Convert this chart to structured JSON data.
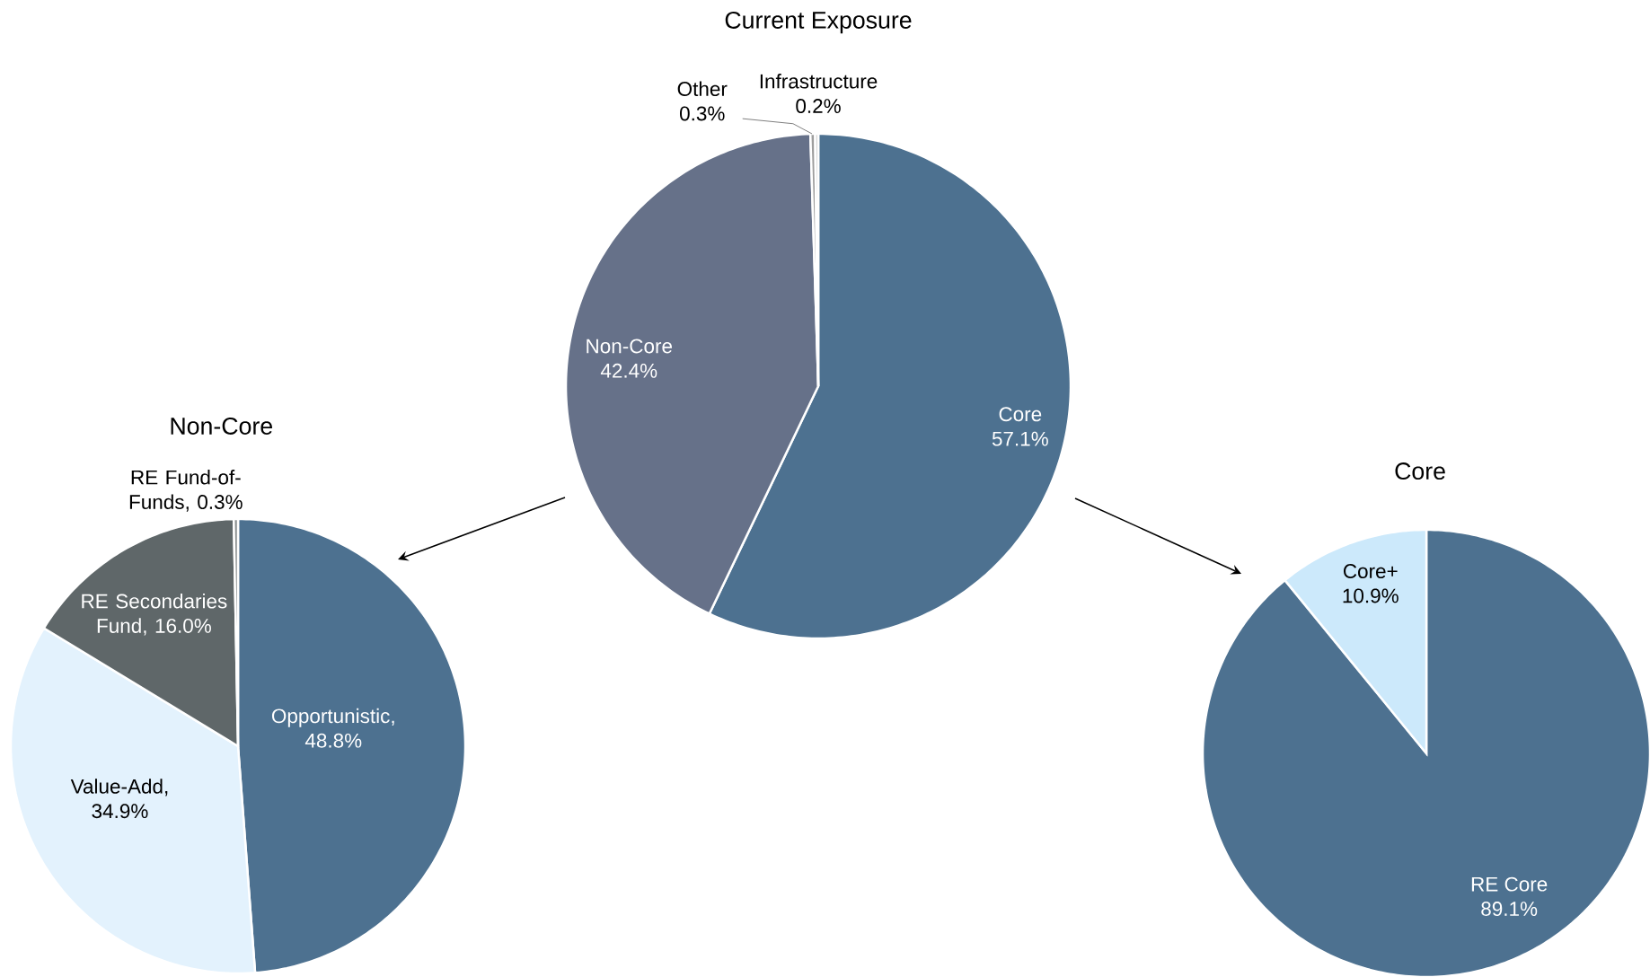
{
  "chart_data": [
    {
      "type": "pie",
      "title": "Current Exposure",
      "categories": [
        "Core",
        "Non-Core",
        "Other",
        "Infrastructure"
      ],
      "values": [
        57.1,
        42.4,
        0.3,
        0.2
      ],
      "value_labels": [
        "57.1%",
        "42.4%",
        "0.3%",
        "0.2%"
      ],
      "colors": [
        "#4d7190",
        "#667189",
        "#9e9e9e",
        "#c9c9c9"
      ]
    },
    {
      "type": "pie",
      "title": "Non-Core",
      "categories": [
        "Opportunistic",
        "Value-Add",
        "RE Secondaries Fund",
        "RE Fund-of-Funds"
      ],
      "values": [
        48.8,
        34.9,
        16.0,
        0.3
      ],
      "value_labels": [
        ", 48.8%",
        ", 34.9%",
        ", 16.0%",
        ", 0.3%"
      ],
      "colors": [
        "#4d7190",
        "#e3f2fd",
        "#5f6769",
        "#8a8f90"
      ]
    },
    {
      "type": "pie",
      "title": "Core",
      "categories": [
        "RE Core",
        "Core+"
      ],
      "values": [
        89.1,
        10.9
      ],
      "value_labels": [
        "89.1%",
        "10.9%"
      ],
      "colors": [
        "#4d7190",
        "#cce9fb"
      ]
    }
  ]
}
